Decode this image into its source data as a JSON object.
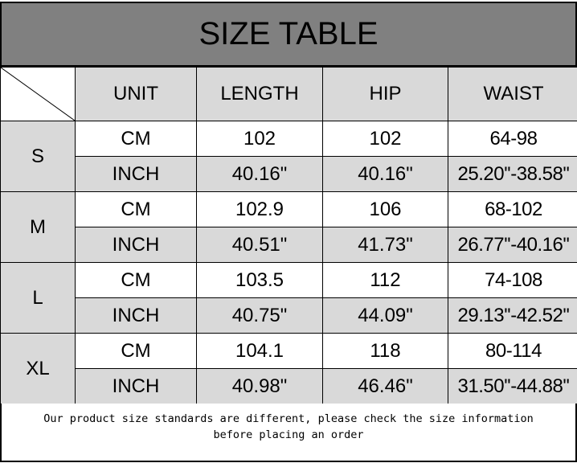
{
  "title": "SIZE TABLE",
  "headers": [
    "UNIT",
    "LENGTH",
    "HIP",
    "WAIST"
  ],
  "sizes": [
    {
      "size": "S",
      "rows": [
        {
          "unit": "CM",
          "length": "102",
          "hip": "102",
          "waist": "64-98"
        },
        {
          "unit": "INCH",
          "length": "40.16\"",
          "hip": "40.16\"",
          "waist": "25.20''-38.58''"
        }
      ]
    },
    {
      "size": "M",
      "rows": [
        {
          "unit": "CM",
          "length": "102.9",
          "hip": "106",
          "waist": "68-102"
        },
        {
          "unit": "INCH",
          "length": "40.51\"",
          "hip": "41.73\"",
          "waist": "26.77''-40.16''"
        }
      ]
    },
    {
      "size": "L",
      "rows": [
        {
          "unit": "CM",
          "length": "103.5",
          "hip": "112",
          "waist": "74-108"
        },
        {
          "unit": "INCH",
          "length": "40.75\"",
          "hip": "44.09\"",
          "waist": "29.13''-42.52''"
        }
      ]
    },
    {
      "size": "XL",
      "rows": [
        {
          "unit": "CM",
          "length": "104.1",
          "hip": "118",
          "waist": "80-114"
        },
        {
          "unit": "INCH",
          "length": "40.98\"",
          "hip": "46.46\"",
          "waist": "31.50''-44.88''"
        }
      ]
    }
  ],
  "footer": {
    "line1": "Our product size standards are different, please check the size information",
    "line2": "before placing an order"
  },
  "colors": {
    "title_bg": "#808080",
    "cell_gray": "#d9d9d9"
  }
}
